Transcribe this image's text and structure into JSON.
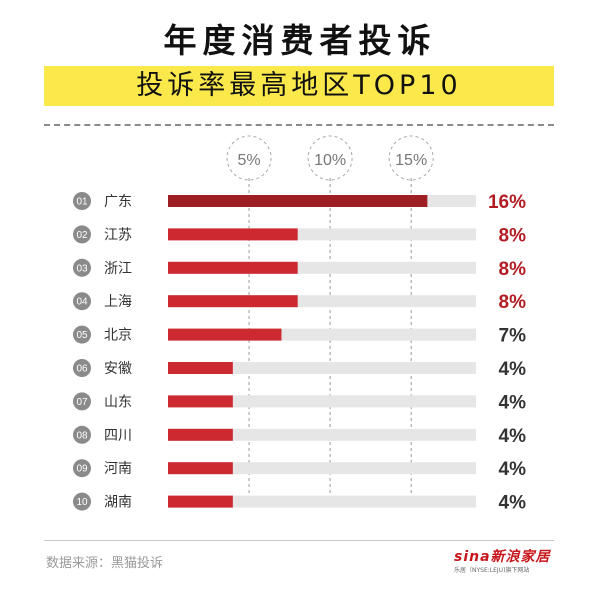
{
  "title": "年度消费者投诉",
  "subtitle": "投诉率最高地区TOP10",
  "source": "数据来源：黑猫投诉",
  "brand": {
    "name": "sina新浪家居",
    "sub": "乐居（NYSE:LEJU)旗下网站"
  },
  "colors": {
    "accent": "#cc2a30",
    "top_bar": "#9d1f24",
    "track": "#e6e6e6",
    "highlight": "#b31c22",
    "band": "#fbe94c"
  },
  "chart_data": {
    "type": "bar",
    "orientation": "horizontal",
    "title": "年度消费者投诉",
    "subtitle": "投诉率最高地区TOP10",
    "ranks": [
      "01",
      "02",
      "03",
      "04",
      "05",
      "06",
      "07",
      "08",
      "09",
      "10"
    ],
    "categories": [
      "广东",
      "江苏",
      "浙江",
      "上海",
      "北京",
      "安徽",
      "山东",
      "四川",
      "河南",
      "湖南"
    ],
    "values": [
      16,
      8,
      8,
      8,
      7,
      4,
      4,
      4,
      4,
      4
    ],
    "value_labels": [
      "16%",
      "8%",
      "8%",
      "8%",
      "7%",
      "4%",
      "4%",
      "4%",
      "4%",
      "4%"
    ],
    "xlim": [
      0,
      19
    ],
    "gridlines": [
      5,
      10,
      15
    ],
    "tick_labels": [
      "5%",
      "10%",
      "15%"
    ],
    "grid": true
  }
}
